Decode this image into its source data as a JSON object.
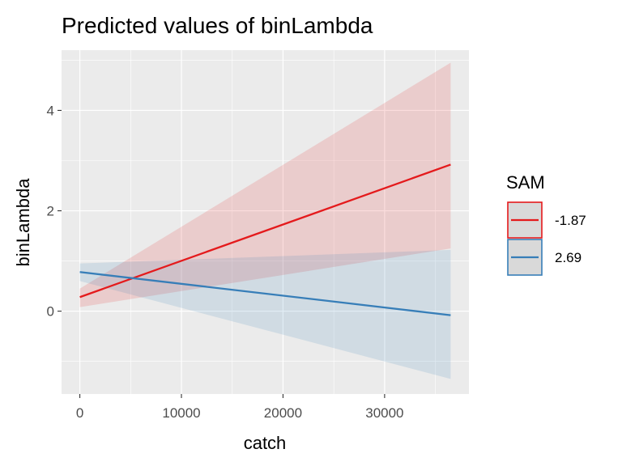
{
  "chart_data": {
    "type": "line",
    "title": "Predicted values of binLambda",
    "xlabel": "catch",
    "ylabel": "binLambda",
    "xlim": [
      -1800,
      38300
    ],
    "ylim": [
      -1.65,
      5.2
    ],
    "x_ticks": [
      0,
      10000,
      20000,
      30000
    ],
    "x_tick_labels": [
      "0",
      "10000",
      "20000",
      "30000"
    ],
    "y_ticks": [
      0,
      2,
      4
    ],
    "y_tick_labels": [
      "0",
      "2",
      "4"
    ],
    "grid": true,
    "legend_title": "SAM",
    "legend_position": "right",
    "series": [
      {
        "name": "-1.87",
        "color": "#e41a1c",
        "x": [
          0,
          36500
        ],
        "y": [
          0.28,
          2.92
        ],
        "ci_lower": [
          0.08,
          1.25
        ],
        "ci_upper": [
          0.45,
          4.95
        ]
      },
      {
        "name": "2.69",
        "color": "#377eb8",
        "x": [
          0,
          36500
        ],
        "y": [
          0.78,
          -0.08
        ],
        "ci_lower": [
          0.6,
          -1.35
        ],
        "ci_upper": [
          0.95,
          1.22
        ]
      }
    ]
  }
}
